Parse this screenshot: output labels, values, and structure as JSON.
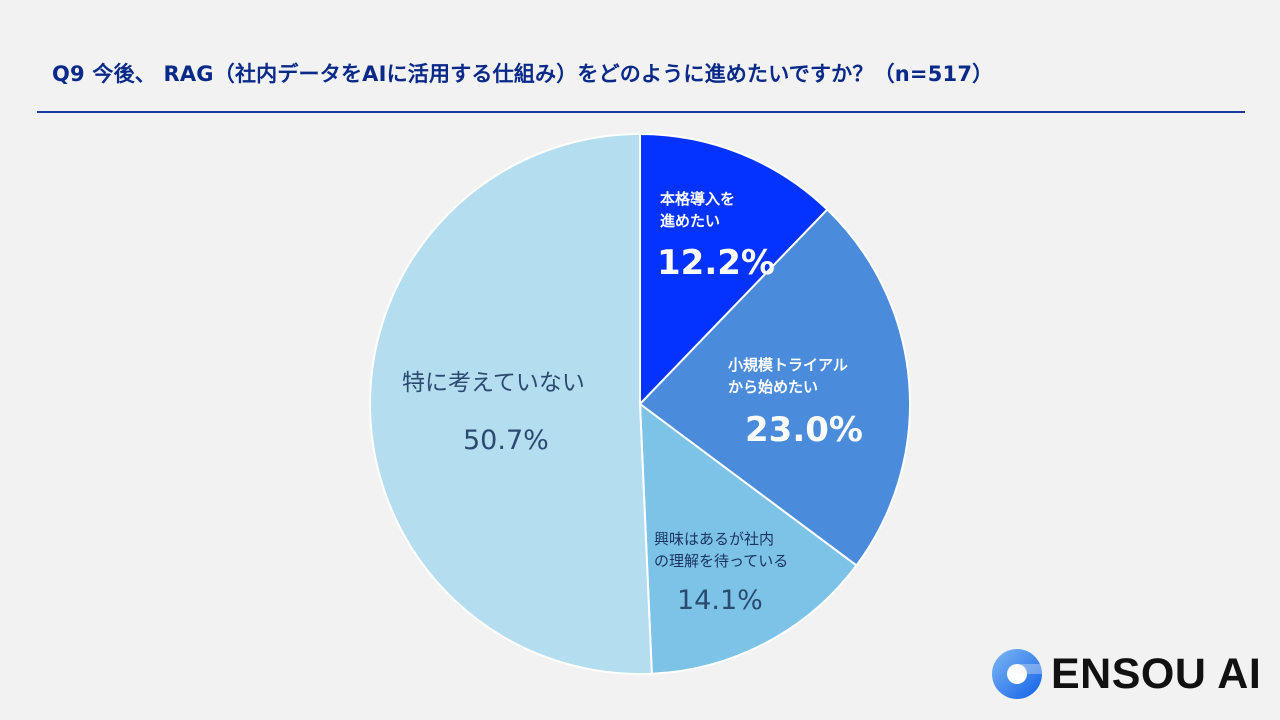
{
  "title": "Q9 今後、 RAG（社内データをAIに活用する仕組み）をどのように進めたいですか？（n=517）",
  "chart_data": {
    "type": "pie",
    "title": "Q9 今後、 RAG（社内データをAIに活用する仕組み）をどのように進めたいですか？（n=517）",
    "n": 517,
    "start": "top",
    "direction": "clockwise",
    "slices": [
      {
        "label_line1": "本格導入を",
        "label_line2": "進めたい",
        "value": 12.2,
        "value_label": "12.2%",
        "color": "#0433FF"
      },
      {
        "label_line1": "小規模トライアル",
        "label_line2": "から始めたい",
        "value": 23.0,
        "value_label": "23.0%",
        "color": "#4A8BDB"
      },
      {
        "label_line1": "興味はあるが社内",
        "label_line2": "の理解を待っている",
        "value": 14.1,
        "value_label": "14.1%",
        "color": "#7DC3E8"
      },
      {
        "label_line1": "特に考えていない",
        "label_line2": "",
        "value": 50.7,
        "value_label": "50.7%",
        "color": "#B5DDF0"
      }
    ]
  },
  "logo": {
    "text": "ENSOU AI"
  }
}
